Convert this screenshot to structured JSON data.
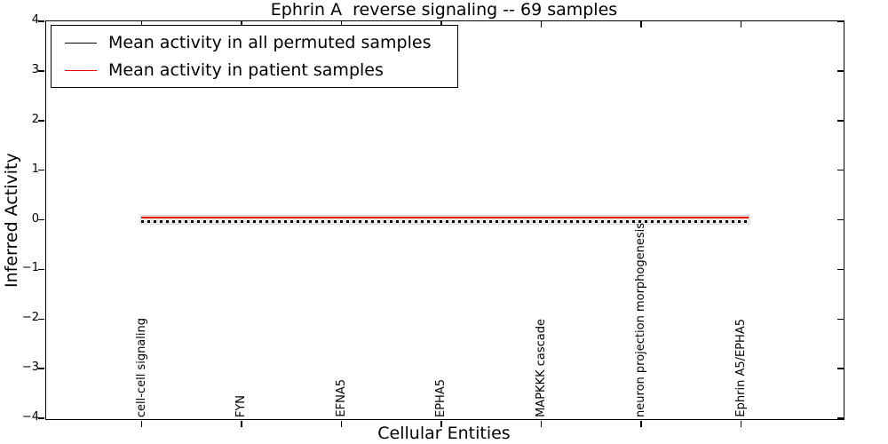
{
  "chart_data": {
    "type": "line",
    "title": "Ephrin A  reverse signaling -- 69 samples",
    "xlabel": "Cellular Entities",
    "ylabel": "Inferred Activity",
    "ylim": [
      -4,
      4
    ],
    "yticks": [
      4,
      3,
      2,
      1,
      0,
      -1,
      -2,
      -3,
      -4
    ],
    "grid": false,
    "legend_position": "upper left",
    "categories": [
      "cell-cell signaling",
      "FYN",
      "EFNA5",
      "EPHA5",
      "MAPKKK cascade",
      "neuron projection morphogenesis",
      "Ephrin A5/EPHA5"
    ],
    "series": [
      {
        "name": "Mean activity in all permuted samples",
        "color": "#000000",
        "line_style": "dotted",
        "values": [
          -0.03,
          -0.03,
          -0.03,
          -0.03,
          -0.03,
          -0.03,
          -0.03
        ]
      },
      {
        "name": "Mean activity in patient samples",
        "color": "#f20000",
        "line_style": "solid",
        "values": [
          0.04,
          0.04,
          0.04,
          0.04,
          0.04,
          0.04,
          0.04
        ]
      }
    ],
    "band": {
      "min": -0.09,
      "max": 0.09,
      "color": "#e8e8e8"
    }
  }
}
